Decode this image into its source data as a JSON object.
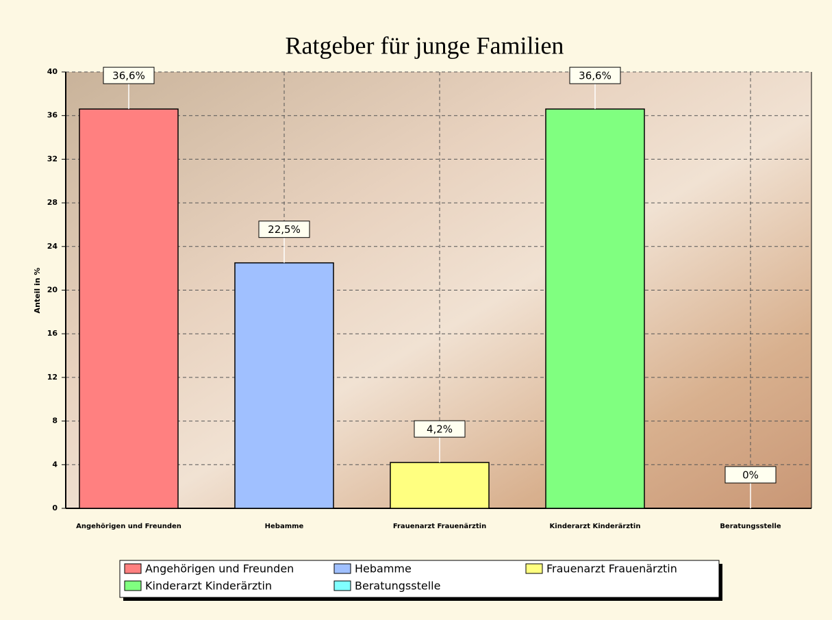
{
  "chart_data": {
    "type": "bar",
    "title": "Ratgeber für junge Familien",
    "y_label": "Anteil in %",
    "categories": [
      "Angehörigen und Freunden",
      "Hebamme",
      "Frauenarzt Frauenärztin",
      "Kinderarzt Kinderärztin",
      "Beratungsstelle"
    ],
    "values": [
      36.6,
      22.5,
      4.2,
      36.6,
      0
    ],
    "value_labels": [
      "36,6%",
      "22,5%",
      "4,2%",
      "36,6%",
      "0%"
    ],
    "colors": [
      "#ff8080",
      "#a0c0ff",
      "#ffff80",
      "#80ff80",
      "#80ffff"
    ],
    "ylim": [
      0,
      40
    ],
    "yticks": [
      0,
      4,
      8,
      12,
      16,
      20,
      24,
      28,
      32,
      36,
      40
    ],
    "grid": true,
    "legend": "bottom"
  }
}
